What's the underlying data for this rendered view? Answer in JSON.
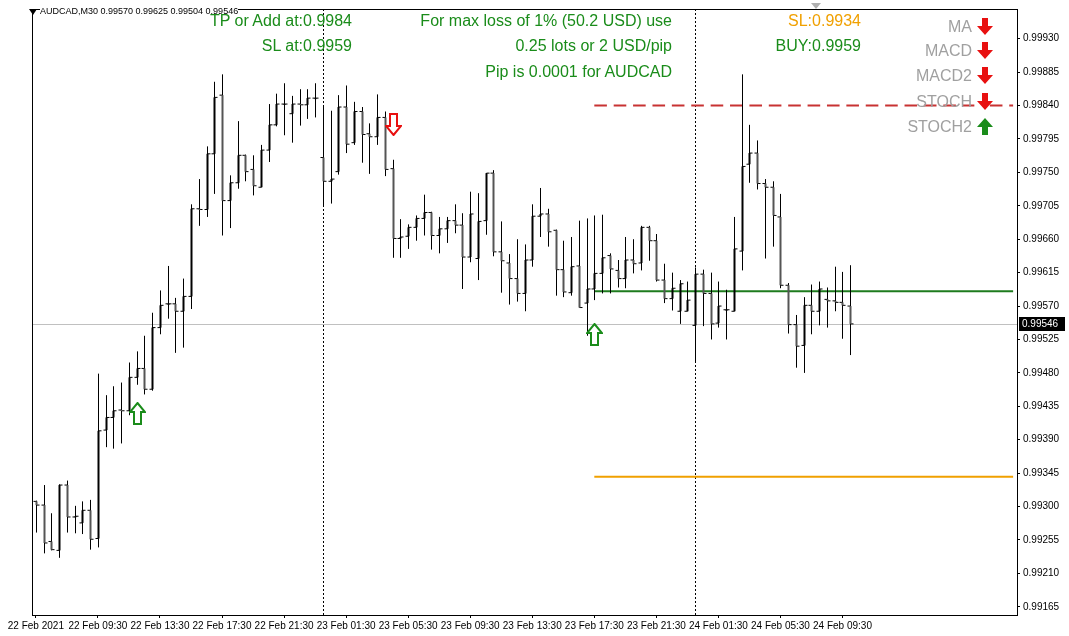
{
  "chart_data": {
    "type": "candlestick",
    "title": "AUDCAD,M30 0.99570 0.99625 0.99504 0.99546",
    "annotations": [
      "TP or Add at:0.9984",
      "SL at:0.9959",
      "For max loss of 1% (50.2 USD) use",
      "0.25 lots or 2 USD/pip",
      "Pip is 0.0001 for AUDCAD",
      "SL:0.9934",
      "BUY:0.9959",
      "MA",
      "MACD",
      "MACD2",
      "STOCH",
      "STOCH2"
    ],
    "categories": [
      "22 Feb 2021",
      null,
      null,
      null,
      null,
      null,
      null,
      null,
      "22 Feb 09:30",
      null,
      null,
      null,
      null,
      null,
      null,
      null,
      "22 Feb 13:30",
      null,
      null,
      null,
      null,
      null,
      null,
      null,
      "22 Feb 17:30",
      null,
      null,
      null,
      null,
      null,
      null,
      null,
      "22 Feb 21:30",
      null,
      null,
      null,
      null,
      null,
      null,
      null,
      "23 Feb 01:30",
      null,
      null,
      null,
      null,
      null,
      null,
      null,
      "23 Feb 05:30",
      null,
      null,
      null,
      null,
      null,
      null,
      null,
      "23 Feb 09:30",
      null,
      null,
      null,
      null,
      null,
      null,
      null,
      "23 Feb 13:30",
      null,
      null,
      null,
      null,
      null,
      null,
      null,
      "23 Feb 17:30",
      null,
      null,
      null,
      null,
      null,
      null,
      null,
      "23 Feb 21:30",
      null,
      null,
      null,
      null,
      null,
      null,
      null,
      "24 Feb 01:30",
      null,
      null,
      null,
      null,
      null,
      null,
      null,
      "24 Feb 05:30",
      null,
      null,
      null,
      null,
      null,
      null,
      null,
      "24 Feb 09:30",
      null,
      null,
      null,
      null,
      null,
      null,
      null,
      null,
      null,
      null,
      null,
      null,
      null,
      null,
      null,
      null,
      null,
      null,
      null,
      null,
      null,
      null
    ],
    "ohlc": [
      [
        0.99307,
        0.99308,
        0.99265,
        0.99302
      ],
      [
        0.99302,
        0.99329,
        0.99237,
        0.99251
      ],
      [
        0.99253,
        0.99291,
        0.99241,
        0.99242
      ],
      [
        0.99241,
        0.9933,
        0.99231,
        0.99329
      ],
      [
        0.99329,
        0.99335,
        0.99265,
        0.99286
      ],
      [
        0.99286,
        0.99301,
        0.99264,
        0.99287
      ],
      [
        0.99278,
        0.99307,
        0.99263,
        0.99295
      ],
      [
        0.99295,
        0.99309,
        0.99242,
        0.99256
      ],
      [
        0.99257,
        0.99479,
        0.99245,
        0.99402
      ],
      [
        0.99403,
        0.9945,
        0.9938,
        0.9942
      ],
      [
        0.9942,
        0.99462,
        0.99378,
        0.99429
      ],
      [
        0.9943,
        0.99467,
        0.99385,
        0.99429
      ],
      [
        0.99429,
        0.99494,
        0.99423,
        0.99474
      ],
      [
        0.99474,
        0.99509,
        0.99464,
        0.99486
      ],
      [
        0.99486,
        0.9953,
        0.99451,
        0.99458
      ],
      [
        0.99458,
        0.99561,
        0.99456,
        0.99541
      ],
      [
        0.99541,
        0.99591,
        0.99532,
        0.99571
      ],
      [
        0.99573,
        0.99624,
        0.99553,
        0.99573
      ],
      [
        0.99573,
        0.99581,
        0.99507,
        0.99563
      ],
      [
        0.99563,
        0.99607,
        0.99514,
        0.99583
      ],
      [
        0.99583,
        0.99707,
        0.99566,
        0.99701
      ],
      [
        0.99701,
        0.99741,
        0.99678,
        0.997
      ],
      [
        0.997,
        0.99785,
        0.9969,
        0.99775
      ],
      [
        0.99775,
        0.99872,
        0.99721,
        0.99851
      ],
      [
        0.99854,
        0.99882,
        0.99665,
        0.99712
      ],
      [
        0.99712,
        0.99746,
        0.99675,
        0.99736
      ],
      [
        0.99736,
        0.99819,
        0.99728,
        0.99773
      ],
      [
        0.99773,
        0.99774,
        0.99738,
        0.99751
      ],
      [
        0.99754,
        0.99773,
        0.99719,
        0.99732
      ],
      [
        0.9973,
        0.99787,
        0.9973,
        0.9978
      ],
      [
        0.9978,
        0.99842,
        0.99764,
        0.99814
      ],
      [
        0.99814,
        0.99856,
        0.99812,
        0.99842
      ],
      [
        0.99842,
        0.9987,
        0.998,
        0.99842
      ],
      [
        0.99829,
        0.99853,
        0.9979,
        0.99842
      ],
      [
        0.99842,
        0.99862,
        0.99813,
        0.99841
      ],
      [
        0.99841,
        0.99862,
        0.99822,
        0.9985
      ],
      [
        0.9985,
        0.9987,
        0.99824,
        0.9985
      ],
      [
        0.9977,
        0.99838,
        0.99705,
        0.99738
      ],
      [
        0.99738,
        0.99833,
        0.99708,
        0.99741
      ],
      [
        0.99751,
        0.99854,
        0.99747,
        0.99838
      ],
      [
        0.99838,
        0.99867,
        0.99776,
        0.99788
      ],
      [
        0.9979,
        0.99845,
        0.99787,
        0.99832
      ],
      [
        0.99832,
        0.99838,
        0.99763,
        0.99801
      ],
      [
        0.99802,
        0.99816,
        0.99748,
        0.99798
      ],
      [
        0.99798,
        0.99855,
        0.99787,
        0.99824
      ],
      [
        0.99824,
        0.99832,
        0.99745,
        0.99754
      ],
      [
        0.99755,
        0.99767,
        0.99635,
        0.99661
      ],
      [
        0.99661,
        0.99687,
        0.99635,
        0.99663
      ],
      [
        0.99664,
        0.9968,
        0.99647,
        0.99676
      ],
      [
        0.99676,
        0.99692,
        0.99658,
        0.99688
      ],
      [
        0.99688,
        0.9972,
        0.99665,
        0.99696
      ],
      [
        0.99696,
        0.99697,
        0.99646,
        0.99665
      ],
      [
        0.99665,
        0.9969,
        0.99641,
        0.99674
      ],
      [
        0.99674,
        0.9969,
        0.99655,
        0.99685
      ],
      [
        0.99685,
        0.99707,
        0.99668,
        0.99679
      ],
      [
        0.99679,
        0.99695,
        0.99593,
        0.99636
      ],
      [
        0.99636,
        0.99724,
        0.99629,
        0.99694
      ],
      [
        0.99634,
        0.99722,
        0.99605,
        0.99684
      ],
      [
        0.99685,
        0.99749,
        0.99666,
        0.99749
      ],
      [
        0.99749,
        0.99753,
        0.99637,
        0.99643
      ],
      [
        0.99643,
        0.99684,
        0.99588,
        0.99631
      ],
      [
        0.99628,
        0.9964,
        0.99572,
        0.99607
      ],
      [
        0.99607,
        0.9966,
        0.99576,
        0.99587
      ],
      [
        0.99587,
        0.99653,
        0.99563,
        0.99632
      ],
      [
        0.99632,
        0.99707,
        0.99623,
        0.99691
      ],
      [
        0.99691,
        0.99729,
        0.99663,
        0.99694
      ],
      [
        0.99694,
        0.99701,
        0.9965,
        0.9967
      ],
      [
        0.99672,
        0.99673,
        0.99584,
        0.99619
      ],
      [
        0.99619,
        0.99658,
        0.99582,
        0.99589
      ],
      [
        0.99588,
        0.99663,
        0.99584,
        0.99623
      ],
      [
        0.99624,
        0.99685,
        0.99568,
        0.99568
      ],
      [
        0.99574,
        0.99688,
        0.9953,
        0.99593
      ],
      [
        0.99593,
        0.99692,
        0.99578,
        0.99614
      ],
      [
        0.99614,
        0.99693,
        0.99587,
        0.99635
      ],
      [
        0.99638,
        0.99641,
        0.99587,
        0.9962
      ],
      [
        0.99618,
        0.99632,
        0.99595,
        0.99607
      ],
      [
        0.99607,
        0.99663,
        0.99594,
        0.99632
      ],
      [
        0.99632,
        0.9966,
        0.99614,
        0.99627
      ],
      [
        0.99628,
        0.99678,
        0.99618,
        0.99676
      ],
      [
        0.99676,
        0.99678,
        0.99631,
        0.99658
      ],
      [
        0.99658,
        0.99667,
        0.99603,
        0.99605
      ],
      [
        0.99605,
        0.99627,
        0.99574,
        0.9958
      ],
      [
        0.9958,
        0.99615,
        0.99564,
        0.99594
      ],
      [
        0.99563,
        0.99605,
        0.99546,
        0.996
      ],
      [
        0.99563,
        0.99603,
        0.99563,
        0.99578
      ],
      [
        0.99544,
        0.99622,
        0.99494,
        0.99613
      ],
      [
        0.99613,
        0.99619,
        0.99543,
        0.99587
      ],
      [
        0.99587,
        0.99615,
        0.99525,
        0.99546
      ],
      [
        0.99547,
        0.99603,
        0.99541,
        0.9957
      ],
      [
        0.99565,
        0.99592,
        0.99525,
        0.99565
      ],
      [
        0.99563,
        0.9969,
        0.99563,
        0.99647
      ],
      [
        0.99644,
        0.99882,
        0.99618,
        0.99758
      ],
      [
        0.99761,
        0.99814,
        0.99736,
        0.99776
      ],
      [
        0.99776,
        0.99793,
        0.99727,
        0.99735
      ],
      [
        0.99735,
        0.99741,
        0.99634,
        0.9973
      ],
      [
        0.9973,
        0.99738,
        0.9965,
        0.99692
      ],
      [
        0.9969,
        0.99721,
        0.99594,
        0.99598
      ],
      [
        0.99598,
        0.99601,
        0.99533,
        0.99545
      ],
      [
        0.99545,
        0.99558,
        0.99487,
        0.99516
      ],
      [
        0.99517,
        0.99582,
        0.9948,
        0.99571
      ],
      [
        0.99571,
        0.99599,
        0.99532,
        0.99563
      ],
      [
        0.99563,
        0.99603,
        0.99544,
        0.99593
      ],
      [
        0.99579,
        0.99595,
        0.99541,
        0.99577
      ],
      [
        0.99577,
        0.99623,
        0.99563,
        0.99575
      ],
      [
        0.99575,
        0.99616,
        0.99526,
        0.99571
      ],
      [
        0.9957,
        0.99625,
        0.99504,
        0.99546
      ],
      null,
      null,
      null,
      null,
      null,
      null,
      null,
      null,
      null,
      null,
      null,
      null,
      null,
      null,
      null,
      null,
      null,
      null,
      null,
      null,
      null
    ],
    "series": [
      {
        "type": "line",
        "values": [
          null,
          null,
          null,
          null,
          null,
          null,
          null,
          null,
          null,
          null,
          null,
          null,
          null,
          null,
          null,
          null,
          null,
          null,
          null,
          null,
          null,
          null,
          null,
          null,
          null,
          null,
          null,
          null,
          null,
          null,
          null,
          null,
          null,
          null,
          null,
          null,
          null,
          null,
          null,
          null,
          null,
          null,
          null,
          null,
          null,
          null,
          null,
          null,
          null,
          null,
          null,
          null,
          null,
          null,
          null,
          null,
          null,
          null,
          null,
          null,
          null,
          null,
          null,
          null,
          null,
          null,
          null,
          null,
          null,
          null,
          null,
          null,
          0.9984,
          0.9984,
          0.9984,
          0.9984,
          0.9984,
          0.9984,
          0.9984,
          0.9984,
          0.9984,
          0.9984,
          0.9984,
          0.9984,
          0.9984,
          0.9984,
          0.9984,
          0.9984,
          0.9984,
          0.9984,
          0.9984,
          0.9984,
          0.9984,
          0.9984,
          0.9984,
          0.9984,
          0.9984,
          0.9984,
          0.9984,
          0.9984,
          0.9984,
          0.9984,
          0.9984,
          0.9984,
          0.9984,
          0.9984,
          0.9984,
          0.9984,
          0.9984,
          0.9984,
          0.9984,
          0.9984,
          0.9984,
          0.9984,
          0.9984,
          0.9984,
          0.9984,
          0.9984,
          0.9984,
          0.9984,
          0.9984,
          0.9984,
          null,
          0.9984,
          0.9984,
          0.9984,
          0.9984
        ],
        "color": "#c83232",
        "line_style": "dashed"
      },
      {
        "type": "line",
        "values": [
          null,
          null,
          null,
          null,
          null,
          null,
          null,
          null,
          null,
          null,
          null,
          null,
          null,
          null,
          null,
          null,
          null,
          null,
          null,
          null,
          null,
          null,
          null,
          null,
          null,
          null,
          null,
          null,
          null,
          null,
          null,
          null,
          null,
          null,
          null,
          null,
          null,
          null,
          null,
          null,
          null,
          null,
          null,
          null,
          null,
          null,
          null,
          null,
          null,
          null,
          null,
          null,
          null,
          null,
          null,
          null,
          null,
          null,
          null,
          null,
          null,
          null,
          null,
          null,
          null,
          null,
          null,
          null,
          null,
          null,
          null,
          null,
          0.9959,
          0.9959,
          0.9959,
          0.9959,
          0.9959,
          0.9959,
          0.9959,
          0.9959,
          0.9959,
          0.9959,
          0.9959,
          0.9959,
          0.9959,
          0.9959,
          0.9959,
          0.9959,
          0.9959,
          0.9959,
          0.9959,
          0.9959,
          0.9959,
          0.9959,
          0.9959,
          0.9959,
          0.9959,
          0.9959,
          0.9959,
          0.9959,
          0.9959,
          0.9959,
          0.9959,
          0.9959,
          0.9959,
          0.9959,
          0.9959,
          0.9959,
          0.9959,
          0.9959,
          0.9959,
          0.9959,
          0.9959,
          0.9959,
          0.9959,
          0.9959,
          0.9959,
          0.9959,
          0.9959,
          0.9959,
          0.9959,
          0.9959,
          0.9959,
          0.9959,
          0.9959,
          0.9959,
          0.9959
        ],
        "color": "#1e7b1e",
        "line_style": "solid"
      },
      {
        "type": "line",
        "values": [
          null,
          null,
          null,
          null,
          null,
          null,
          null,
          null,
          null,
          null,
          null,
          null,
          null,
          null,
          null,
          null,
          null,
          null,
          null,
          null,
          null,
          null,
          null,
          null,
          null,
          null,
          null,
          null,
          null,
          null,
          null,
          null,
          null,
          null,
          null,
          null,
          null,
          null,
          null,
          null,
          null,
          null,
          null,
          null,
          null,
          null,
          null,
          null,
          null,
          null,
          null,
          null,
          null,
          null,
          null,
          null,
          null,
          null,
          null,
          null,
          null,
          null,
          null,
          null,
          null,
          null,
          null,
          null,
          null,
          null,
          null,
          null,
          0.9934,
          0.9934,
          0.9934,
          0.9934,
          0.9934,
          0.9934,
          0.9934,
          0.9934,
          0.9934,
          0.9934,
          0.9934,
          0.9934,
          0.9934,
          0.9934,
          0.9934,
          0.9934,
          0.9934,
          0.9934,
          0.9934,
          0.9934,
          0.9934,
          0.9934,
          0.9934,
          0.9934,
          0.9934,
          0.9934,
          0.9934,
          0.9934,
          0.9934,
          0.9934,
          0.9934,
          0.9934,
          0.9934,
          0.9934,
          0.9934,
          0.9934,
          0.9934,
          0.9934,
          0.9934,
          0.9934,
          0.9934,
          0.9934,
          0.9934,
          0.9934,
          0.9934,
          0.9934,
          0.9934,
          0.9934,
          0.9934,
          0.9934,
          0.9934,
          0.9934,
          0.9934,
          0.9934,
          0.9934
        ],
        "color": "#f0a000",
        "line_style": "solid"
      }
    ],
    "ref_lines": [
      {
        "axis": "y",
        "value": 0.99546,
        "label": "0.99546",
        "color": "#c0c0c0"
      }
    ],
    "ylim": [
      0.99154,
      0.9997
    ],
    "yticks": [
      0.99165,
      {
        "value": 0.9921,
        "label": "0.99210"
      },
      0.99255,
      {
        "value": 0.993,
        "label": "0.99300"
      },
      0.99345,
      {
        "value": 0.9939,
        "label": "0.99390"
      },
      0.99435,
      {
        "value": 0.9948,
        "label": "0.99480"
      },
      0.99525,
      {
        "value": 0.9957,
        "label": "0.99570"
      },
      0.99615,
      {
        "value": 0.9966,
        "label": "0.99660"
      },
      0.99705,
      {
        "value": 0.9975,
        "label": "0.99750"
      },
      0.99795,
      {
        "value": 0.9984,
        "label": "0.99840"
      },
      0.99885,
      {
        "value": 0.9993,
        "label": "0.99930"
      }
    ],
    "grid": false,
    "legend": false
  }
}
